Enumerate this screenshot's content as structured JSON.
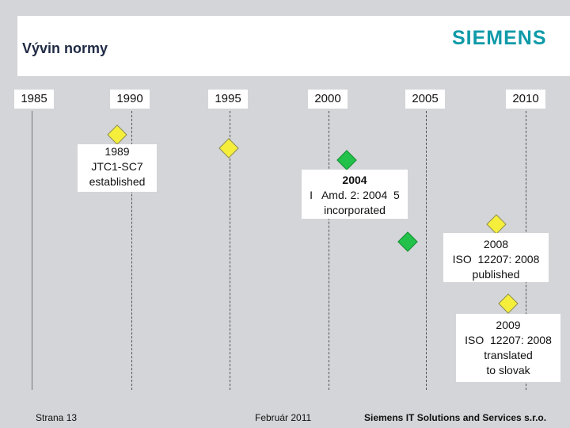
{
  "header": {
    "title": "Vývin normy",
    "brand": "SIEMENS"
  },
  "timeline": {
    "years": [
      "1985",
      "1990",
      "1995",
      "2000",
      "2005",
      "2010"
    ]
  },
  "events": [
    {
      "year": "1989",
      "lines": [
        "JTC1-SC7",
        "established"
      ]
    },
    {
      "year": "2004",
      "lines": [
        "I   Amd. 2: 2004  5",
        "incorporated"
      ]
    },
    {
      "year": "2008",
      "lines": [
        "ISO  12207: 2008",
        "published"
      ]
    },
    {
      "year": "2009",
      "lines": [
        "ISO  12207: 2008",
        "translated",
        "to slovak"
      ]
    }
  ],
  "colors": {
    "milestone_yellow": "#f5ef3b",
    "milestone_green": "#22c24a",
    "brand": "#0f9aa8"
  },
  "footer": {
    "page": "Strana 13",
    "date": "Február 2011",
    "company": "Siemens IT Solutions and Services s.r.o."
  }
}
